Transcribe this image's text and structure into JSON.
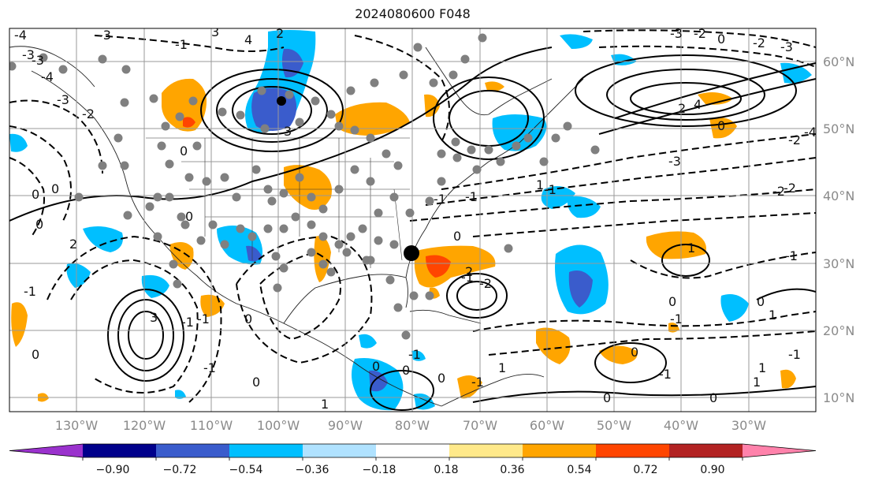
{
  "title": "2024080600 F048",
  "map": {
    "projection": "cylindrical",
    "lon_range": [
      -141,
      -21
    ],
    "lat_range": [
      8,
      65
    ],
    "gridlines": true,
    "lon_labels": [
      "130°W",
      "120°W",
      "110°W",
      "100°W",
      "90°W",
      "80°W",
      "70°W",
      "60°W",
      "50°W",
      "40°W",
      "30°W"
    ],
    "lat_labels": [
      "60°N",
      "50°N",
      "40°N",
      "30°N",
      "20°N",
      "10°N"
    ],
    "contour_labels": [
      "-4",
      "-3",
      "-3",
      "4",
      "3",
      "-1",
      "2",
      "3",
      "-3",
      "-4",
      "-3",
      "-2",
      "-3",
      "-2",
      "0",
      "2",
      "-3",
      "-2",
      "-4",
      "4",
      "0",
      "-2",
      "-3",
      "-2",
      "-2",
      "1",
      "-1",
      "0",
      "0",
      "0",
      "2",
      "0",
      "-1",
      "3",
      "0",
      "-2",
      "-1",
      "2",
      "-1",
      "-1",
      "0",
      "-1",
      "-1",
      "-1",
      "0",
      "-1",
      "0",
      "1",
      "0",
      "0",
      "1",
      "0",
      "0",
      "0",
      "1",
      "1",
      "0",
      "-1",
      "1",
      "0",
      "-1",
      "-1",
      "1",
      "-1",
      "-1",
      "0",
      "0"
    ],
    "markers": {
      "highlight_point": {
        "lon": -80,
        "lat": 31.8
      }
    }
  },
  "colorbar": {
    "ticks": [
      "−0.90",
      "−0.72",
      "−0.54",
      "−0.36",
      "−0.18",
      "0.18",
      "0.36",
      "0.54",
      "0.72",
      "0.90"
    ],
    "colors": [
      "#9a32cd",
      "#00008b",
      "#3a5ccc",
      "#00bfff",
      "#b0e2ff",
      "#ffffff",
      "#ffe98a",
      "#ffa500",
      "#ff4500",
      "#b22222",
      "#ff82ab"
    ],
    "extend": "both"
  }
}
